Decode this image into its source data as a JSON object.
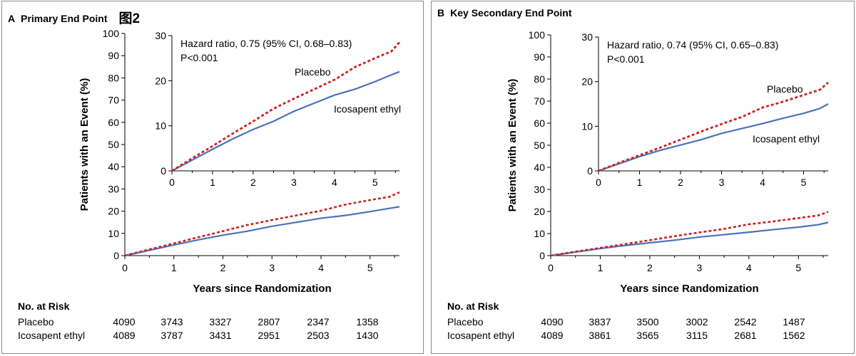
{
  "chart_data": [
    {
      "type": "line",
      "panel_letter": "A",
      "title": "Primary End Point",
      "figure_tag": "图2",
      "xlabel": "Years since Randomization",
      "ylabel": "Patients with an Event (%)",
      "xlim": [
        0,
        5.6
      ],
      "ylim": [
        0,
        100
      ],
      "xticks": [
        "0",
        "1",
        "2",
        "3",
        "4",
        "5"
      ],
      "yticks": [
        "0",
        "10",
        "20",
        "30",
        "40",
        "50",
        "60",
        "70",
        "80",
        "90",
        "100"
      ],
      "series": [
        {
          "name": "Placebo",
          "color": "#cc2222",
          "style": "dashed",
          "x": [
            0,
            0.5,
            1,
            1.5,
            2,
            2.5,
            3,
            3.5,
            4,
            4.5,
            5,
            5.4,
            5.6
          ],
          "values": [
            0,
            2.8,
            5.5,
            8.3,
            11.0,
            13.8,
            16.0,
            18.1,
            20.2,
            23.0,
            25.0,
            26.5,
            28.5
          ]
        },
        {
          "name": "Icosapent ethyl",
          "color": "#4a72bb",
          "style": "solid",
          "x": [
            0,
            0.5,
            1,
            1.5,
            2,
            2.5,
            3,
            3.5,
            4,
            4.5,
            5,
            5.4,
            5.6
          ],
          "values": [
            0,
            2.4,
            4.8,
            7.1,
            9.2,
            11.0,
            13.2,
            15.0,
            16.8,
            18.1,
            19.8,
            21.3,
            22.0
          ]
        }
      ],
      "inset": {
        "xlim": [
          0,
          5.6
        ],
        "ylim": [
          0,
          30
        ],
        "xticks": [
          "0",
          "1",
          "2",
          "3",
          "4",
          "5"
        ],
        "yticks": [
          "0",
          "10",
          "20",
          "30"
        ],
        "annotation_line1": "Hazard ratio, 0.75 (95% CI, 0.68–0.83)",
        "annotation_line2": "P<0.001",
        "placebo_label": "Placebo",
        "ice_label": "Icosapent ethyl"
      },
      "risk_table": {
        "header": "No. at Risk",
        "rows": [
          {
            "label": "Placebo",
            "values": [
              "4090",
              "3743",
              "3327",
              "2807",
              "2347",
              "1358"
            ]
          },
          {
            "label": "Icosapent ethyl",
            "values": [
              "4089",
              "3787",
              "3431",
              "2951",
              "2503",
              "1430"
            ]
          }
        ]
      }
    },
    {
      "type": "line",
      "panel_letter": "B",
      "title": "Key Secondary End Point",
      "xlabel": "Years since Randomization",
      "ylabel": "Patients with an Event (%)",
      "xlim": [
        0,
        5.6
      ],
      "ylim": [
        0,
        100
      ],
      "xticks": [
        "0",
        "1",
        "2",
        "3",
        "4",
        "5"
      ],
      "yticks": [
        "0",
        "10",
        "20",
        "30",
        "40",
        "50",
        "60",
        "70",
        "80",
        "90",
        "100"
      ],
      "series": [
        {
          "name": "Placebo",
          "color": "#cc2222",
          "style": "dashed",
          "x": [
            0,
            0.5,
            1,
            1.5,
            2,
            2.5,
            3,
            3.5,
            4,
            4.5,
            5,
            5.4,
            5.6
          ],
          "values": [
            0,
            1.8,
            3.5,
            5.2,
            7.0,
            8.8,
            10.5,
            12.1,
            14.2,
            15.5,
            17.0,
            18.2,
            19.8
          ]
        },
        {
          "name": "Icosapent ethyl",
          "color": "#4a72bb",
          "style": "solid",
          "x": [
            0,
            0.5,
            1,
            1.5,
            2,
            2.5,
            3,
            3.5,
            4,
            4.5,
            5,
            5.4,
            5.6
          ],
          "values": [
            0,
            1.6,
            3.2,
            4.6,
            5.8,
            7.0,
            8.4,
            9.5,
            10.6,
            11.8,
            12.9,
            14.0,
            15.0
          ]
        }
      ],
      "inset": {
        "xlim": [
          0,
          5.6
        ],
        "ylim": [
          0,
          30
        ],
        "xticks": [
          "0",
          "1",
          "2",
          "3",
          "4",
          "5"
        ],
        "yticks": [
          "0",
          "10",
          "20",
          "30"
        ],
        "annotation_line1": "Hazard ratio, 0.74 (95% CI, 0.65–0.83)",
        "annotation_line2": "P<0.001",
        "placebo_label": "Placebo",
        "ice_label": "Icosapent ethyl"
      },
      "risk_table": {
        "header": "No. at Risk",
        "rows": [
          {
            "label": "Placebo",
            "values": [
              "4090",
              "3837",
              "3500",
              "3002",
              "2542",
              "1487"
            ]
          },
          {
            "label": "Icosapent ethyl",
            "values": [
              "4089",
              "3861",
              "3565",
              "3115",
              "2681",
              "1562"
            ]
          }
        ]
      }
    }
  ]
}
